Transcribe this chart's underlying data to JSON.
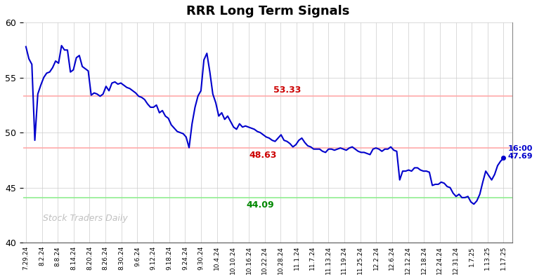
{
  "title": "RRR Long Term Signals",
  "watermark": "Stock Traders Daily",
  "hline_upper": 53.33,
  "hline_mid": 48.63,
  "hline_lower": 44.09,
  "hline_upper_color": "#ffaaaa",
  "hline_mid_color": "#ffaaaa",
  "hline_lower_color": "#90EE90",
  "annotation_upper": {
    "text": "53.33",
    "color": "#cc0000",
    "xi": 0.545
  },
  "annotation_mid": {
    "text": "48.63",
    "color": "#cc0000",
    "xi": 0.495
  },
  "annotation_lower": {
    "text": "44.09",
    "color": "#008800",
    "xi": 0.49
  },
  "last_value": 47.69,
  "ylim": [
    40,
    60
  ],
  "yticks": [
    40,
    45,
    50,
    55,
    60
  ],
  "line_color": "#0000cc",
  "line_width": 1.5,
  "background_color": "#ffffff",
  "grid_color": "#cccccc",
  "x_labels": [
    "7.29.24",
    "8.2.24",
    "8.8.24",
    "8.14.24",
    "8.20.24",
    "8.26.24",
    "8.30.24",
    "9.6.24",
    "9.12.24",
    "9.18.24",
    "9.24.24",
    "9.30.24",
    "10.4.24",
    "10.10.24",
    "10.16.24",
    "10.22.24",
    "10.28.24",
    "11.1.24",
    "11.7.24",
    "11.13.24",
    "11.19.24",
    "11.25.24",
    "12.2.24",
    "12.6.24",
    "12.12.24",
    "12.18.24",
    "12.24.24",
    "12.31.24",
    "1.7.25",
    "1.13.25",
    "1.17.25"
  ],
  "prices": [
    57.8,
    56.7,
    56.2,
    49.3,
    53.5,
    54.3,
    55.0,
    55.4,
    55.5,
    55.9,
    56.5,
    56.3,
    57.9,
    57.5,
    57.5,
    55.5,
    55.7,
    56.8,
    57.0,
    56.0,
    55.8,
    55.6,
    53.4,
    53.6,
    53.5,
    53.3,
    53.5,
    54.2,
    53.8,
    54.5,
    54.6,
    54.4,
    54.5,
    54.3,
    54.1,
    54.0,
    53.8,
    53.6,
    53.3,
    53.2,
    53.0,
    52.6,
    52.3,
    52.3,
    52.5,
    51.8,
    52.0,
    51.5,
    51.3,
    50.7,
    50.4,
    50.1,
    50.0,
    49.9,
    49.6,
    48.63,
    50.8,
    52.3,
    53.33,
    53.8,
    56.6,
    57.2,
    55.5,
    53.5,
    52.7,
    51.5,
    51.8,
    51.2,
    51.5,
    51.0,
    50.5,
    50.3,
    50.8,
    50.5,
    50.6,
    50.5,
    50.4,
    50.3,
    50.1,
    50.0,
    49.8,
    49.6,
    49.5,
    49.3,
    49.2,
    49.5,
    49.8,
    49.3,
    49.2,
    49.0,
    48.7,
    48.9,
    49.3,
    49.5,
    49.1,
    48.8,
    48.7,
    48.5,
    48.5,
    48.5,
    48.3,
    48.2,
    48.5,
    48.5,
    48.4,
    48.5,
    48.6,
    48.5,
    48.4,
    48.6,
    48.7,
    48.5,
    48.3,
    48.2,
    48.2,
    48.1,
    48.0,
    48.5,
    48.6,
    48.5,
    48.3,
    48.5,
    48.5,
    48.7,
    48.4,
    48.3,
    45.7,
    46.5,
    46.5,
    46.6,
    46.5,
    46.8,
    46.8,
    46.6,
    46.5,
    46.5,
    46.4,
    45.2,
    45.3,
    45.3,
    45.5,
    45.4,
    45.1,
    45.0,
    44.5,
    44.2,
    44.4,
    44.09,
    44.1,
    44.2,
    43.7,
    43.5,
    43.8,
    44.4,
    45.5,
    46.5,
    46.1,
    45.7,
    46.2,
    47.0,
    47.4,
    47.69
  ]
}
